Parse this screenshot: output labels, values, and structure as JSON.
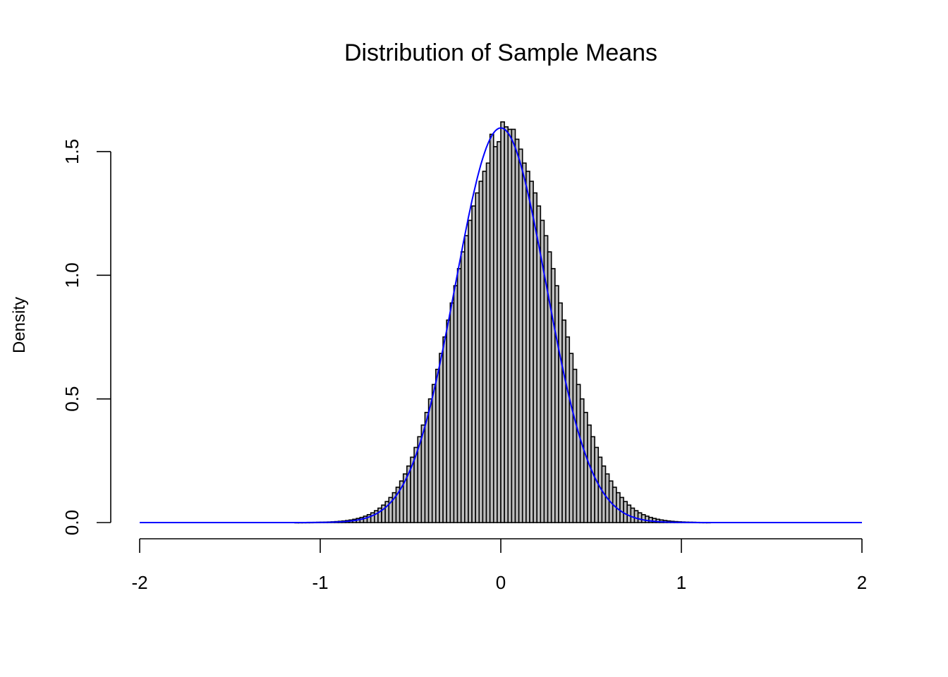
{
  "chart_data": {
    "type": "bar",
    "title": "Distribution of Sample Means",
    "xlabel": "",
    "ylabel": "Density",
    "xlim": [
      -2,
      2
    ],
    "ylim": [
      0,
      1.6
    ],
    "x_ticks": [
      -2,
      -1,
      0,
      1,
      2
    ],
    "x_tick_labels": [
      "-2",
      "-1",
      "0",
      "1",
      "2"
    ],
    "y_ticks": [
      0,
      0.5,
      1.0,
      1.5
    ],
    "y_tick_labels": [
      "0.0",
      "0.5",
      "1.0",
      "1.5"
    ],
    "grid": false,
    "legend": null,
    "bin_width": 0.02,
    "bin_start": -1.14,
    "bin_end": 1.16,
    "bar_fill": "#bebebe",
    "bar_stroke": "#000000",
    "values": [
      0.0002,
      0.0003,
      0.0004,
      0.0005,
      0.0006,
      0.0008,
      0.0011,
      0.0014,
      0.0018,
      0.0024,
      0.0031,
      0.004,
      0.0051,
      0.0065,
      0.0083,
      0.0105,
      0.0133,
      0.0167,
      0.0208,
      0.0259,
      0.032,
      0.0393,
      0.048,
      0.0584,
      0.0706,
      0.0849,
      0.1015,
      0.1208,
      0.1429,
      0.1681,
      0.1966,
      0.2286,
      0.2643,
      0.3038,
      0.3471,
      0.3943,
      0.4453,
      0.5,
      0.5582,
      0.6196,
      0.6838,
      0.7504,
      0.8187,
      0.888,
      0.9577,
      1.0268,
      1.0945,
      1.1599,
      1.222,
      1.28,
      1.3329,
      1.3799,
      1.4203,
      1.4535,
      1.57,
      1.52,
      1.54,
      1.62,
      1.6,
      1.59,
      1.59,
      1.55,
      1.51,
      1.4535,
      1.4203,
      1.3799,
      1.3329,
      1.28,
      1.222,
      1.1599,
      1.0945,
      1.0268,
      0.9577,
      0.888,
      0.8187,
      0.7504,
      0.6838,
      0.6196,
      0.5582,
      0.5,
      0.4453,
      0.3943,
      0.3471,
      0.3038,
      0.2643,
      0.2286,
      0.1966,
      0.1681,
      0.1429,
      0.1208,
      0.1015,
      0.0849,
      0.0706,
      0.0584,
      0.048,
      0.0393,
      0.032,
      0.0259,
      0.0208,
      0.0167,
      0.0133,
      0.0105,
      0.0083,
      0.0065,
      0.0051,
      0.004,
      0.0031,
      0.0024,
      0.0018,
      0.0014,
      0.0011,
      0.0008,
      0.0006,
      0.0005,
      0.0004
    ],
    "density_curve": {
      "name": "Normal density",
      "color": "#0000ff",
      "mean": 0,
      "sd": 0.25,
      "x_range": [
        -2,
        2
      ]
    }
  }
}
